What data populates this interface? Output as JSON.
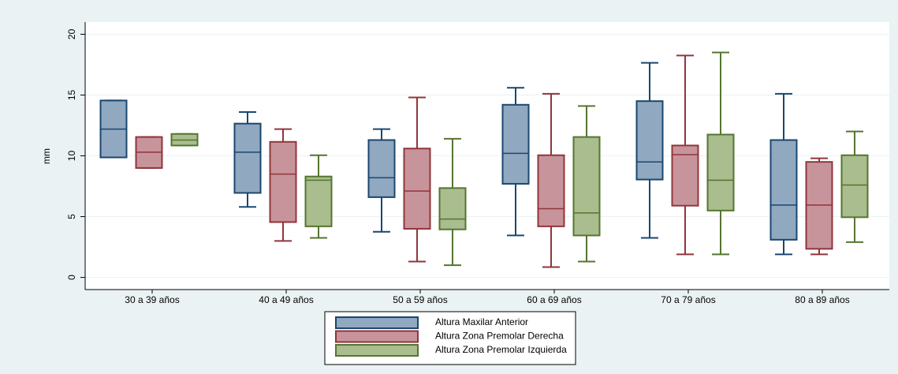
{
  "chart_data": {
    "type": "box",
    "ylabel": "mm",
    "categories": [
      "30 a 39 años",
      "40 a 49 años",
      "50 a 59 años",
      "60 a 69 años",
      "70 a 79 años",
      "80 a 89 años"
    ],
    "ylim": [
      -1,
      21
    ],
    "yticks": [
      0,
      5,
      10,
      15,
      20
    ],
    "grid": true,
    "series": [
      {
        "name": "Altura Maxilar Anterior",
        "color": "#90a8c0",
        "edge": "#1a476f",
        "low": [
          9.87,
          5.8,
          3.75,
          3.45,
          3.25,
          1.9
        ],
        "q1": [
          9.87,
          6.95,
          6.6,
          7.7,
          8.05,
          3.1
        ],
        "median": [
          12.2,
          10.3,
          8.2,
          10.2,
          9.5,
          5.95
        ],
        "q3": [
          14.55,
          12.65,
          11.3,
          14.2,
          14.5,
          11.3
        ],
        "high": [
          14.55,
          13.6,
          12.2,
          15.6,
          17.65,
          15.1
        ]
      },
      {
        "name": "Altura Zona Premolar Derecha",
        "color": "#c8949c",
        "edge": "#90353b",
        "low": [
          9.0,
          3.0,
          1.3,
          0.85,
          1.9,
          1.9
        ],
        "q1": [
          9.0,
          4.55,
          4.0,
          4.2,
          5.9,
          2.35
        ],
        "median": [
          10.3,
          8.5,
          7.1,
          5.65,
          10.1,
          5.95
        ],
        "q3": [
          11.55,
          11.15,
          10.6,
          10.05,
          10.85,
          9.5
        ],
        "high": [
          11.55,
          12.2,
          14.8,
          15.1,
          18.25,
          9.8
        ]
      },
      {
        "name": "Altura Zona Premolar Izquierda",
        "color": "#a9bd8f",
        "edge": "#55752f",
        "low": [
          10.85,
          3.25,
          1.0,
          1.3,
          1.9,
          2.9
        ],
        "q1": [
          10.85,
          4.2,
          3.95,
          3.45,
          5.5,
          4.95
        ],
        "median": [
          11.3,
          8.0,
          4.8,
          5.3,
          8.0,
          7.6
        ],
        "q3": [
          11.8,
          8.3,
          7.35,
          11.55,
          11.75,
          10.05
        ],
        "high": [
          11.8,
          10.05,
          11.4,
          14.1,
          18.5,
          12.0
        ]
      }
    ]
  }
}
